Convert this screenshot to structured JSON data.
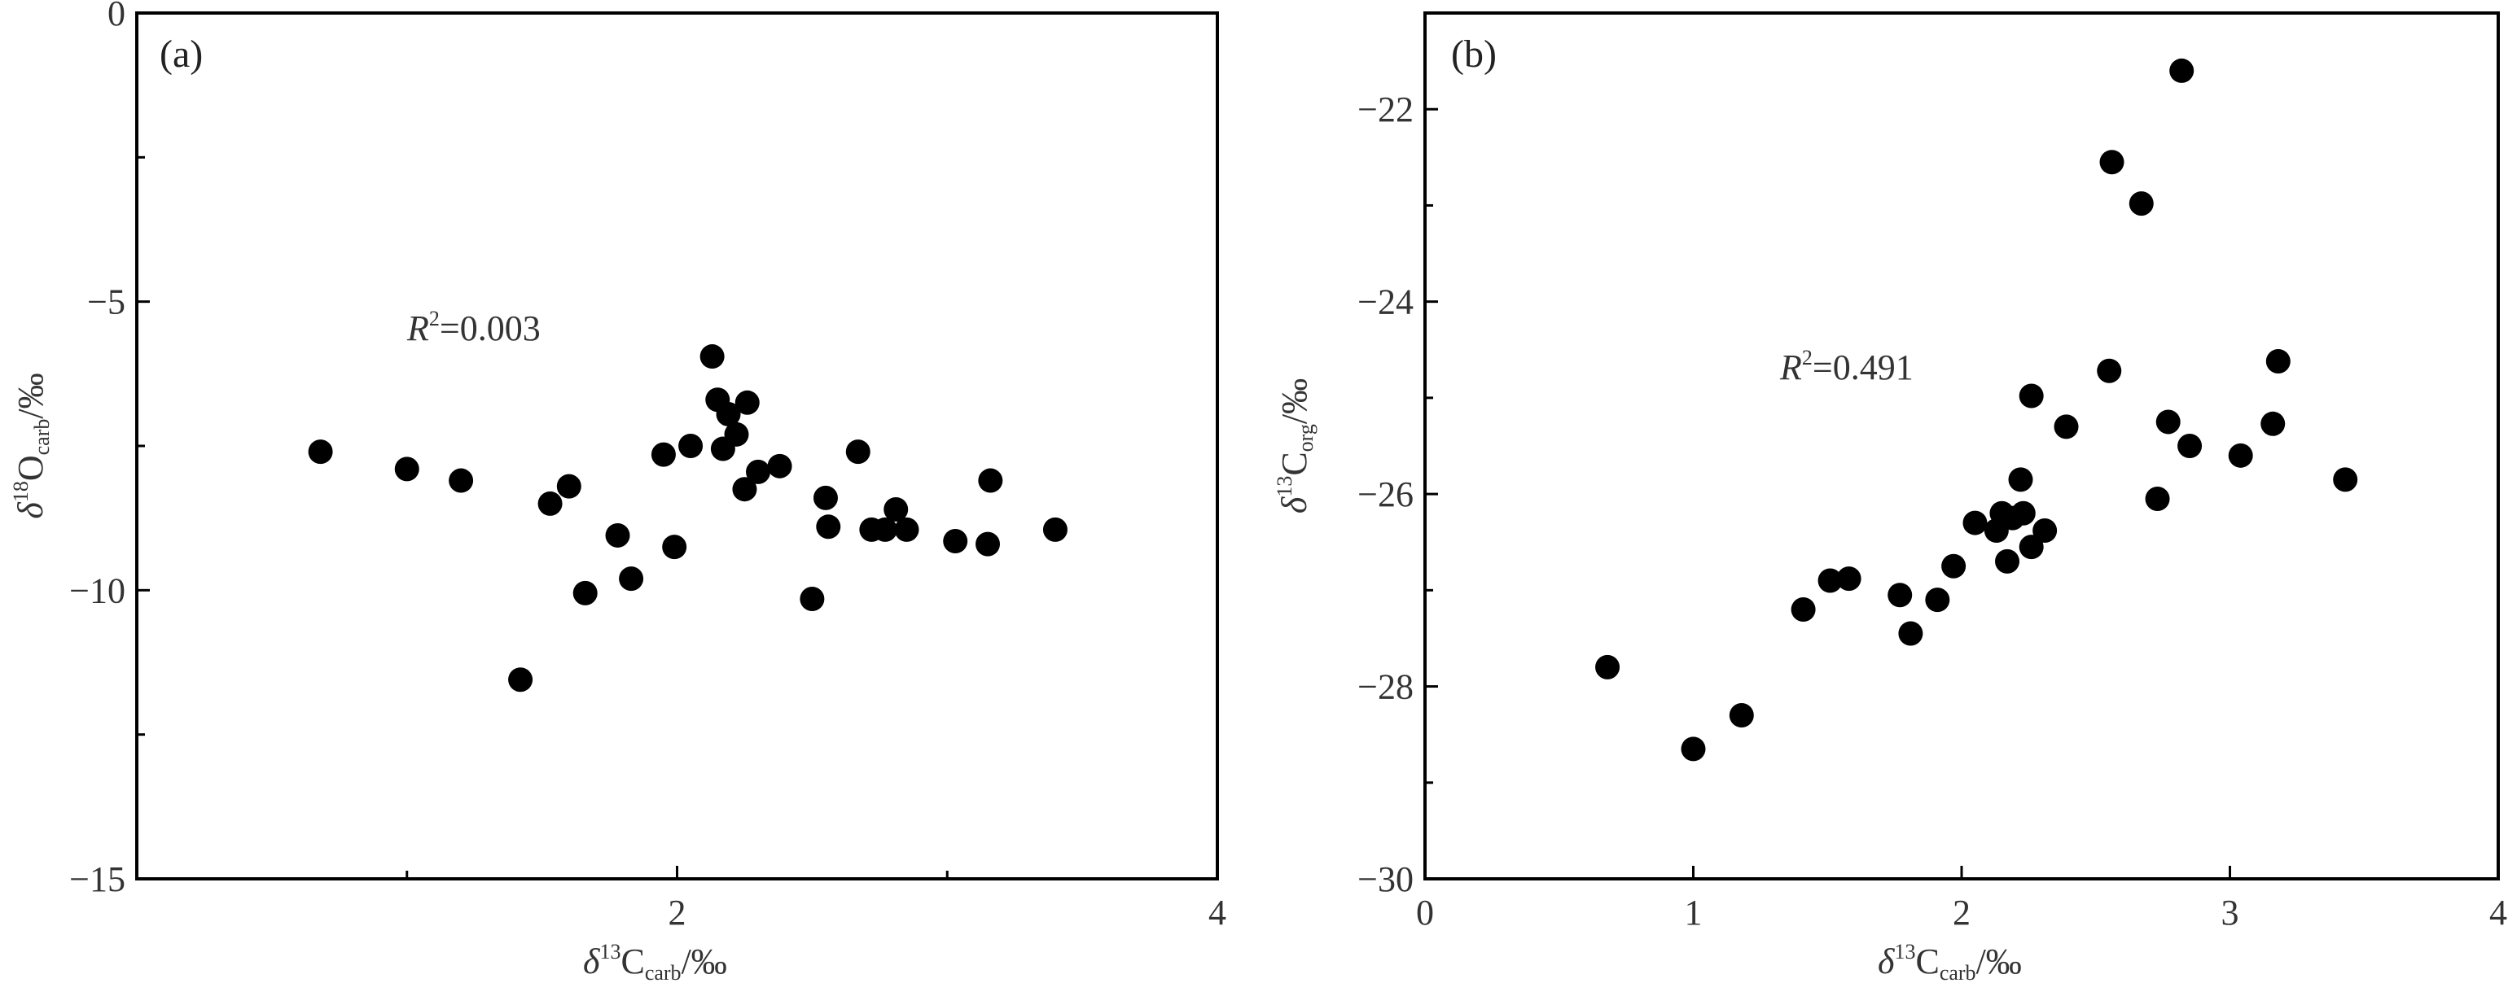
{
  "chart_data": [
    {
      "type": "scatter",
      "panel_label": "(a)",
      "xlim": [
        0,
        4
      ],
      "ylim": [
        -15,
        0
      ],
      "x_ticks": [
        {
          "value": 2,
          "label": "2"
        },
        {
          "value": 4,
          "label": "4"
        }
      ],
      "x_minor_ticks": [
        0,
        1,
        3
      ],
      "y_ticks": [
        {
          "value": 0,
          "label": "0"
        },
        {
          "value": -5,
          "label": "−5"
        },
        {
          "value": -10,
          "label": "−10"
        },
        {
          "value": -15,
          "label": "−15"
        }
      ],
      "y_minor_ticks": [
        -2.5,
        -7.5,
        -12.5
      ],
      "xlabel": {
        "delta": "δ",
        "sup": "13",
        "main": "C",
        "sub": "carb",
        "unit": "/‰"
      },
      "ylabel": {
        "delta": "δ",
        "sup": "18",
        "main": "O",
        "sub": "carb",
        "unit": "/‰"
      },
      "annotation": {
        "r": "R",
        "sup": "2",
        "value": "=0.003"
      },
      "color": "#000000",
      "points": [
        [
          0.68,
          -7.6
        ],
        [
          1.0,
          -7.9
        ],
        [
          1.2,
          -8.1
        ],
        [
          1.42,
          -11.55
        ],
        [
          1.53,
          -8.5
        ],
        [
          1.6,
          -8.2
        ],
        [
          1.66,
          -10.05
        ],
        [
          1.78,
          -9.05
        ],
        [
          1.83,
          -9.8
        ],
        [
          1.95,
          -7.65
        ],
        [
          1.99,
          -9.25
        ],
        [
          2.05,
          -7.5
        ],
        [
          2.13,
          -5.95
        ],
        [
          2.15,
          -6.7
        ],
        [
          2.17,
          -7.55
        ],
        [
          2.19,
          -6.95
        ],
        [
          2.22,
          -7.3
        ],
        [
          2.25,
          -8.25
        ],
        [
          2.26,
          -6.75
        ],
        [
          2.3,
          -7.95
        ],
        [
          2.38,
          -7.85
        ],
        [
          2.5,
          -10.15
        ],
        [
          2.55,
          -8.4
        ],
        [
          2.56,
          -8.9
        ],
        [
          2.67,
          -7.6
        ],
        [
          2.72,
          -8.95
        ],
        [
          2.77,
          -8.95
        ],
        [
          2.81,
          -8.6
        ],
        [
          2.85,
          -8.95
        ],
        [
          3.03,
          -9.15
        ],
        [
          3.15,
          -9.2
        ],
        [
          3.16,
          -8.1
        ],
        [
          3.4,
          -8.95
        ]
      ]
    },
    {
      "type": "scatter",
      "panel_label": "(b)",
      "xlim": [
        0,
        4
      ],
      "ylim": [
        -30,
        -21
      ],
      "x_ticks": [
        {
          "value": 0,
          "label": "0"
        },
        {
          "value": 1,
          "label": "1"
        },
        {
          "value": 2,
          "label": "2"
        },
        {
          "value": 3,
          "label": "3"
        },
        {
          "value": 4,
          "label": "4"
        }
      ],
      "x_minor_ticks": [],
      "y_ticks": [
        {
          "value": -22,
          "label": "−22"
        },
        {
          "value": -24,
          "label": "−24"
        },
        {
          "value": -26,
          "label": "−26"
        },
        {
          "value": -28,
          "label": "−28"
        },
        {
          "value": -30,
          "label": "−30"
        }
      ],
      "y_minor_ticks": [
        -21,
        -23,
        -25,
        -27,
        -29
      ],
      "xlabel": {
        "delta": "δ",
        "sup": "13",
        "main": "C",
        "sub": "carb",
        "unit": "/‰"
      },
      "ylabel": {
        "delta": "δ",
        "sup": "13",
        "main": "C",
        "sub": "org",
        "unit": "/‰"
      },
      "annotation": {
        "r": "R",
        "sup": "2",
        "value": "=0.491"
      },
      "color": "#000000",
      "points": [
        [
          0.68,
          -27.8
        ],
        [
          1.0,
          -28.65
        ],
        [
          1.18,
          -28.3
        ],
        [
          1.41,
          -27.2
        ],
        [
          1.51,
          -26.9
        ],
        [
          1.58,
          -26.88
        ],
        [
          1.77,
          -27.05
        ],
        [
          1.81,
          -27.45
        ],
        [
          1.91,
          -27.1
        ],
        [
          1.97,
          -26.75
        ],
        [
          2.05,
          -26.3
        ],
        [
          2.13,
          -26.38
        ],
        [
          2.15,
          -26.2
        ],
        [
          2.17,
          -26.7
        ],
        [
          2.19,
          -26.25
        ],
        [
          2.22,
          -25.85
        ],
        [
          2.23,
          -26.2
        ],
        [
          2.26,
          -26.55
        ],
        [
          2.26,
          -24.98
        ],
        [
          2.31,
          -26.38
        ],
        [
          2.39,
          -25.3
        ],
        [
          2.55,
          -24.72
        ],
        [
          2.56,
          -22.55
        ],
        [
          2.67,
          -22.98
        ],
        [
          2.73,
          -26.05
        ],
        [
          2.77,
          -25.25
        ],
        [
          2.82,
          -21.6
        ],
        [
          2.85,
          -25.5
        ],
        [
          3.04,
          -25.6
        ],
        [
          3.16,
          -25.27
        ],
        [
          3.18,
          -24.62
        ],
        [
          3.43,
          -25.85
        ]
      ]
    }
  ]
}
